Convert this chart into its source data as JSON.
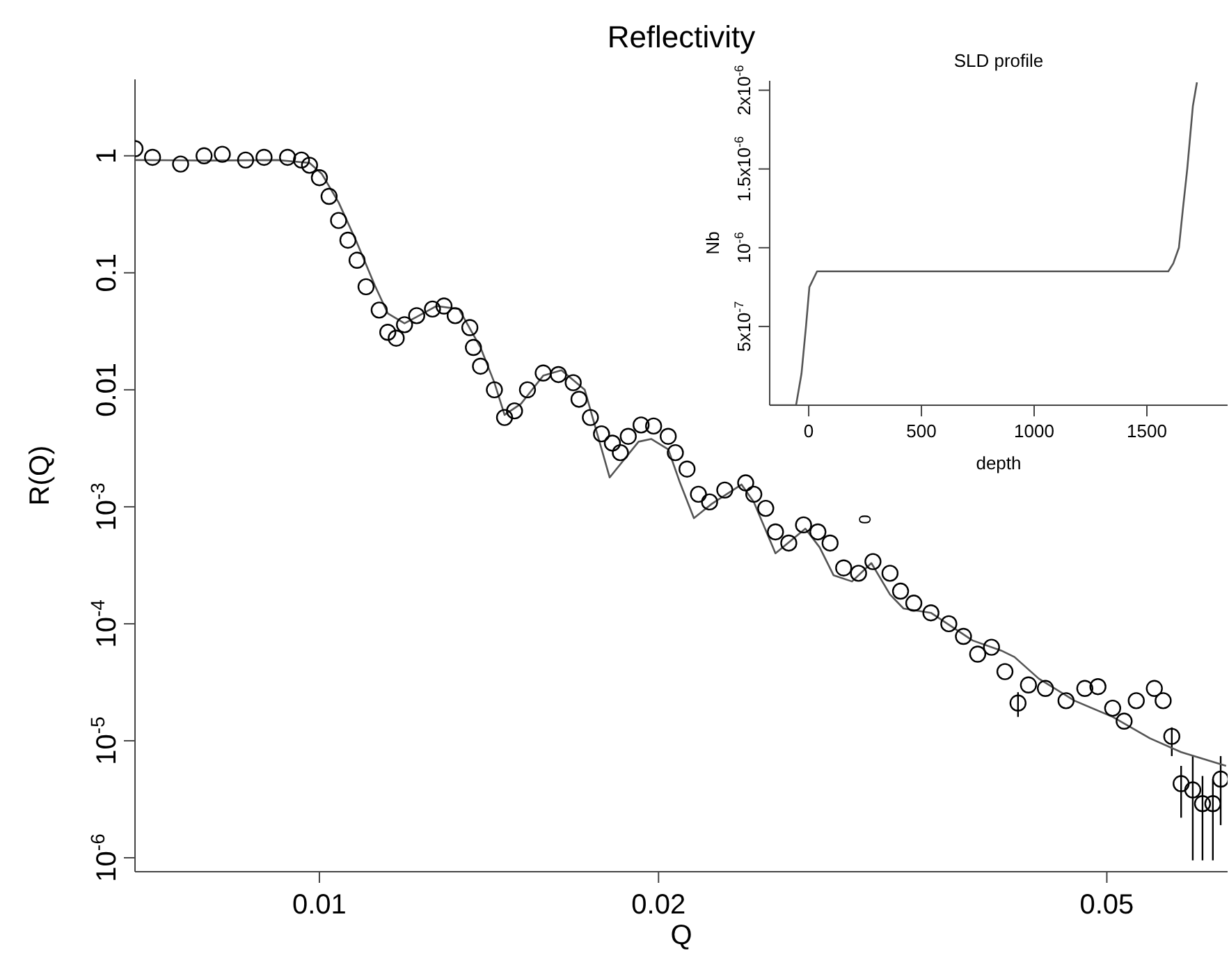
{
  "chart_data": [
    {
      "type": "scatter",
      "title": "Reflectivity",
      "xlabel": "Q",
      "ylabel": "R(Q)",
      "log": "xy",
      "xlim": [
        0.00686,
        0.064
      ],
      "xticks": [
        0.01,
        0.02,
        0.05
      ],
      "ylim": [
        7.6e-07,
        4.5
      ],
      "yticks": [
        1,
        0.1,
        0.01,
        {
          "value": 0.001,
          "label": "10$^{-3}$"
        },
        {
          "value": 0.0001,
          "label": "10$^{-4}$"
        },
        {
          "value": 1e-05,
          "label": "10$^{-5}$"
        },
        {
          "value": 1e-06,
          "label": "10$^{-6}$"
        }
      ],
      "legend": false,
      "grid": false,
      "annotations": [
        "0"
      ],
      "series": [
        {
          "marker": "circle",
          "color": "#000000",
          "x": [
            0.00686,
            0.00711,
            0.00753,
            0.0079,
            0.0082,
            0.0086,
            0.00893,
            0.00937,
            0.00964,
            0.0098,
            0.01,
            0.0102,
            0.0104,
            0.0106,
            0.0108,
            0.011,
            0.0113,
            0.0115,
            0.0117,
            0.0119,
            0.0122,
            0.0126,
            0.0129,
            0.0132,
            0.0136,
            0.0137,
            0.0139,
            0.0143,
            0.0146,
            0.0149,
            0.0153,
            0.0158,
            0.0163,
            0.0168,
            0.017,
            0.0174,
            0.0178,
            0.0182,
            0.0185,
            0.0188,
            0.0193,
            0.0198,
            0.0204,
            0.0207,
            0.0212,
            0.0217,
            0.0222,
            0.0229,
            0.0239,
            0.0243,
            0.0249,
            0.0254,
            0.0261,
            0.0269,
            0.0277,
            0.0284,
            0.0292,
            0.0301,
            0.031,
            0.0321,
            0.0328,
            0.0337,
            0.0349,
            0.0362,
            0.0373,
            0.0384,
            0.0395,
            0.0406,
            0.0417,
            0.0426,
            0.0441,
            0.046,
            0.0478,
            0.0491,
            0.0506,
            0.0518,
            0.0531,
            0.0551,
            0.0561,
            0.0571,
            0.0582,
            0.0596,
            0.0608,
            0.0621,
            0.0631
          ],
          "values": [
            1.15,
            0.97,
            0.85,
            1.0,
            1.03,
            0.92,
            0.97,
            0.97,
            0.92,
            0.83,
            0.65,
            0.45,
            0.28,
            0.19,
            0.128,
            0.076,
            0.048,
            0.031,
            0.0276,
            0.036,
            0.043,
            0.049,
            0.052,
            0.043,
            0.034,
            0.023,
            0.0159,
            0.01,
            0.0058,
            0.0066,
            0.01,
            0.0139,
            0.0135,
            0.0115,
            0.0083,
            0.0058,
            0.0042,
            0.0035,
            0.0029,
            0.004,
            0.005,
            0.0049,
            0.004,
            0.0029,
            0.0021,
            0.00128,
            0.0011,
            0.00139,
            0.0016,
            0.00128,
            0.00097,
            0.00061,
            0.00049,
            0.0007,
            0.00061,
            0.00049,
            0.0003,
            0.00027,
            0.00034,
            0.00027,
            0.00019,
            0.00015,
            0.000124,
            0.0001,
            7.8e-05,
            5.5e-05,
            6.3e-05,
            3.9e-05,
            2.1e-05,
            3e-05,
            2.8e-05,
            2.2e-05,
            2.8e-05,
            2.9e-05,
            1.9e-05,
            1.47e-05,
            2.2e-05,
            2.8e-05,
            2.2e-05,
            1.09e-05,
            4.3e-06,
            3.8e-06,
            2.9e-06,
            2.9e-06,
            4.7e-06
          ],
          "errors": [
            null,
            null,
            null,
            null,
            null,
            null,
            null,
            null,
            null,
            null,
            null,
            null,
            null,
            null,
            null,
            null,
            null,
            null,
            null,
            null,
            null,
            null,
            null,
            null,
            null,
            null,
            null,
            null,
            null,
            null,
            null,
            null,
            null,
            null,
            null,
            null,
            null,
            null,
            null,
            null,
            null,
            null,
            null,
            null,
            null,
            null,
            null,
            null,
            null,
            null,
            null,
            null,
            null,
            null,
            null,
            null,
            null,
            null,
            null,
            null,
            null,
            null,
            null,
            null,
            null,
            null,
            null,
            null,
            [
              1.6e-05,
              2.6e-05
            ],
            null,
            null,
            null,
            null,
            null,
            null,
            null,
            null,
            null,
            null,
            [
              7.4e-06,
              1.3e-05
            ],
            [
              2.2e-06,
              6.1e-06
            ],
            [
              9.5e-07,
              7.4e-06
            ],
            [
              9.5e-07,
              5e-06
            ],
            [
              9.5e-07,
              4.7e-06
            ],
            [
              1.9e-06,
              7.4e-06
            ]
          ]
        },
        {
          "type": "line",
          "marker": "none",
          "color": "#555555",
          "x": [
            0.00686,
            0.00797,
            0.00918,
            0.0098,
            0.01005,
            0.0104,
            0.0108,
            0.0112,
            0.0115,
            0.0119,
            0.0122,
            0.0127,
            0.0133,
            0.0139,
            0.0143,
            0.0146,
            0.0151,
            0.0158,
            0.0164,
            0.0172,
            0.0181,
            0.0192,
            0.0197,
            0.0204,
            0.0209,
            0.0215,
            0.0223,
            0.0237,
            0.0243,
            0.0254,
            0.027,
            0.0278,
            0.0286,
            0.0297,
            0.0309,
            0.0321,
            0.033,
            0.0349,
            0.038,
            0.0403,
            0.0414,
            0.0435,
            0.0468,
            0.0506,
            0.0546,
            0.0582,
            0.0638
          ],
          "values": [
            0.92,
            0.91,
            0.92,
            0.87,
            0.7,
            0.4,
            0.18,
            0.078,
            0.045,
            0.037,
            0.042,
            0.052,
            0.049,
            0.023,
            0.0115,
            0.0061,
            0.0076,
            0.0132,
            0.0147,
            0.01,
            0.00178,
            0.0036,
            0.0038,
            0.0031,
            0.0016,
            0.0008,
            0.00106,
            0.00155,
            0.0011,
            0.0004,
            0.00065,
            0.00045,
            0.00026,
            0.00023,
            0.00033,
            0.000178,
            0.000135,
            0.000124,
            7.2e-05,
            5.9e-05,
            5.2e-05,
            3.4e-05,
            2.2e-05,
            1.6e-05,
            1.05e-05,
            8e-06,
            6.1e-06
          ]
        }
      ]
    },
    {
      "type": "line",
      "title": "SLD profile",
      "xlabel": "depth",
      "ylabel": "Nb",
      "xlim": [
        -173,
        1858
      ],
      "xticks": [
        0,
        500,
        1000,
        1500
      ],
      "ylim": [
        0,
        2.06e-06
      ],
      "yticks": [
        {
          "value": 5e-07,
          "label": "5x10$^{-7}$"
        },
        {
          "value": 1e-06,
          "label": "10$^{-6}$"
        },
        {
          "value": 1.5e-06,
          "label": "1.5x10$^{-6}$"
        },
        {
          "value": 2e-06,
          "label": "2x10$^{-6}$"
        }
      ],
      "legend": false,
      "grid": false,
      "series": [
        {
          "marker": "none",
          "color": "#555555",
          "x": [
            -173,
            -56,
            -32,
            -12,
            3,
            37,
            60,
            1595,
            1617,
            1642,
            1660,
            1679,
            1704,
            1722
          ],
          "values": [
            0,
            0,
            2e-07,
            5e-07,
            7.5e-07,
            8.5e-07,
            8.5e-07,
            8.5e-07,
            9e-07,
            1e-06,
            1.25e-06,
            1.5e-06,
            1.9e-06,
            2.05e-06
          ]
        }
      ]
    }
  ]
}
